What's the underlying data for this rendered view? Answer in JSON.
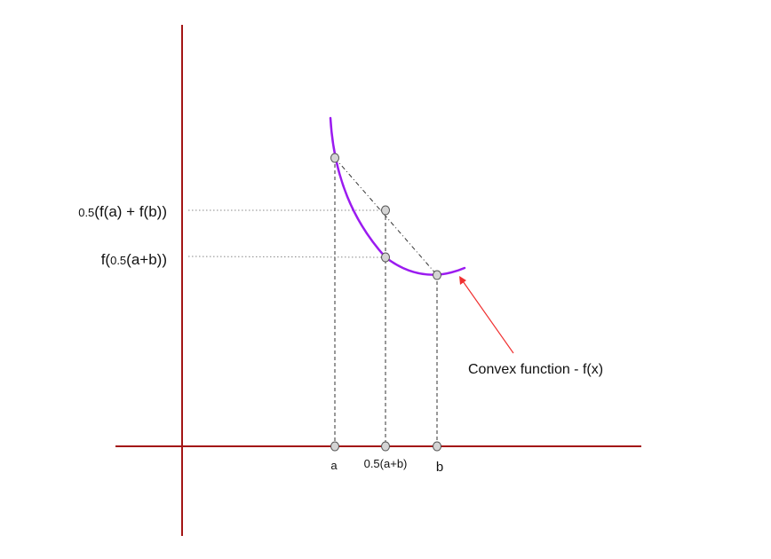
{
  "diagram": {
    "labels": {
      "a": "a",
      "midpoint": "0.5(a+b)",
      "b": "b",
      "avg_value_prefix": "0.5",
      "avg_value_rest": "(f(a) + f(b))",
      "value_at_mid_prefix": "f(",
      "value_at_mid_small": "0.5",
      "value_at_mid_rest": "(a+b))",
      "curve_label": "Convex function - f(x)"
    },
    "colors": {
      "axis": "#a31515",
      "curve": "#9b1bf0",
      "arrow": "#f03030",
      "guide": "#333333",
      "point_fill": "#d4d4d4",
      "point_stroke": "#555555"
    }
  }
}
